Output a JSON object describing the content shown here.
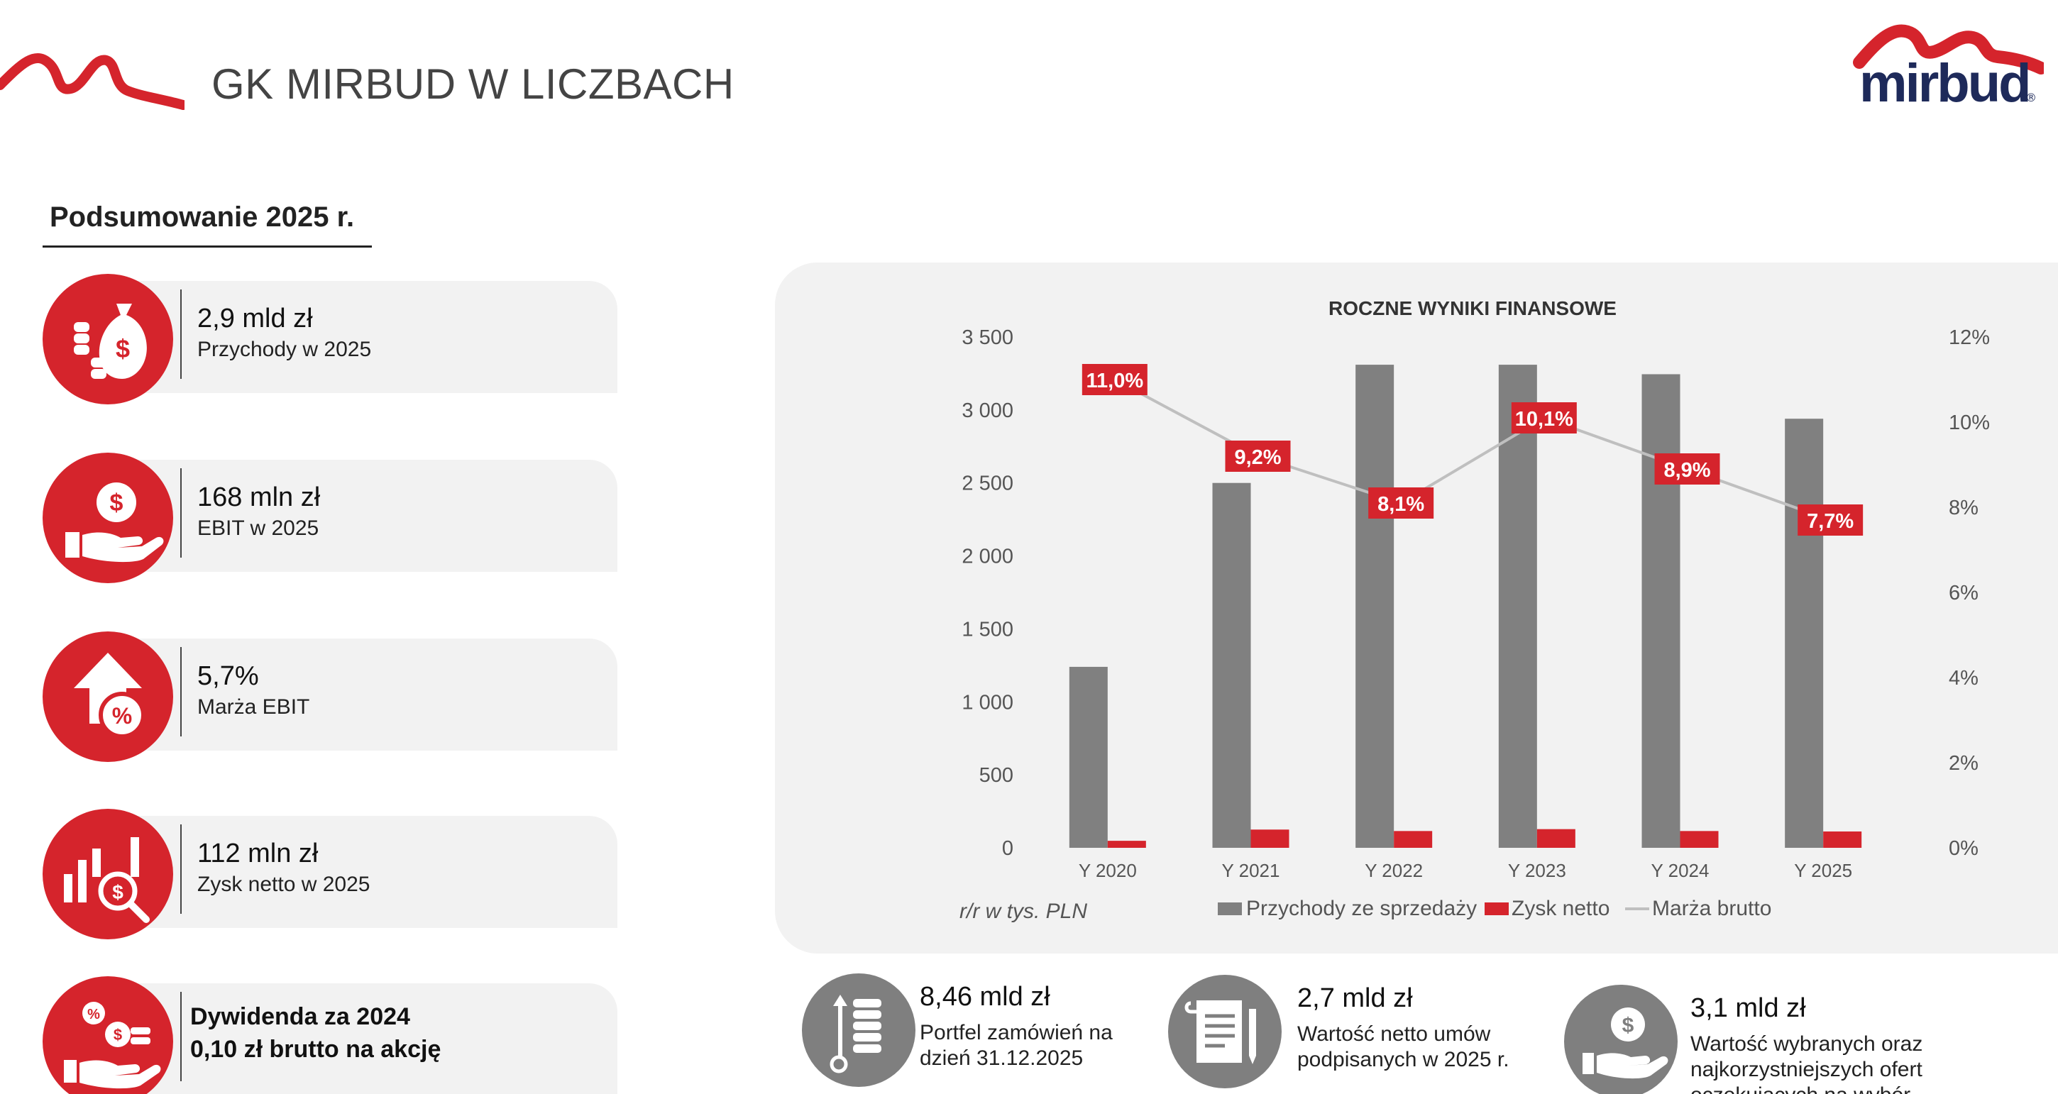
{
  "header": {
    "title": "GK MIRBUD W LICZBACH",
    "brand": "mirbud",
    "brand_mark": "®"
  },
  "summary": {
    "title": "Podsumowanie 2025 r.",
    "kpis": [
      {
        "value": "2,9 mld zł",
        "label": "Przychody w 2025",
        "icon": "money-bag-coins-icon"
      },
      {
        "value": "168 mln zł",
        "label": "EBIT w 2025",
        "icon": "hand-dollar-coin-icon"
      },
      {
        "value": "5,7%",
        "label": "Marża EBIT",
        "icon": "house-arrow-percent-icon"
      },
      {
        "value": "112 mln zł",
        "label": "Zysk netto w 2025",
        "icon": "bar-chart-magnifier-icon"
      }
    ],
    "dividend": {
      "line1": "Dywidenda za 2024",
      "line2": "0,10 zł brutto na akcję",
      "icon": "hand-coins-percent-icon"
    }
  },
  "bottom_kpis": [
    {
      "value": "8,46 mld zł",
      "label": "Portfel zamówień na dzień 31.12.2025",
      "icon": "coin-stack-arrows-icon"
    },
    {
      "value": "2,7 mld zł",
      "label": "Wartość netto umów podpisanych w 2025 r.",
      "icon": "contract-pen-icon"
    },
    {
      "value": "3,1 mld zł",
      "label": "Wartość wybranych oraz najkorzystniejszych ofert oczekujących na wybór",
      "icon": "hand-dollar-coin-icon"
    }
  ],
  "colors": {
    "accent": "#d5242c",
    "bar_revenue": "#808080",
    "bar_profit": "#d5242c",
    "line_margin": "#bfbfbf",
    "panel": "#f2f2f2"
  },
  "chart_data": {
    "type": "bar",
    "title": "ROCZNE WYNIKI FINANSOWE",
    "note": "r/r w tys. PLN",
    "categories": [
      "Y 2020",
      "Y 2021",
      "Y 2022",
      "Y 2023",
      "Y 2024",
      "Y 2025"
    ],
    "series": [
      {
        "name": "Przychody ze sprzedaży",
        "type": "bar",
        "axis": "left",
        "values": [
          1240,
          2500,
          3310,
          3310,
          3245,
          2940
        ]
      },
      {
        "name": "Zysk netto",
        "type": "bar",
        "axis": "left",
        "values": [
          48,
          125,
          115,
          128,
          115,
          112
        ]
      },
      {
        "name": "Marża brutto",
        "type": "line",
        "axis": "right",
        "values": [
          11.0,
          9.2,
          8.1,
          10.1,
          8.9,
          7.7
        ],
        "labels": [
          "11,0%",
          "9,2%",
          "8,1%",
          "10,1%",
          "8,9%",
          "7,7%"
        ]
      }
    ],
    "y_left": {
      "min": 0,
      "max": 3500,
      "ticks": [
        0,
        500,
        1000,
        1500,
        2000,
        2500,
        3000,
        3500
      ],
      "tick_labels": [
        "0",
        "500",
        "1 000",
        "1 500",
        "2 000",
        "2 500",
        "3 000",
        "3 500"
      ]
    },
    "y_right": {
      "min": 0,
      "max": 12,
      "ticks": [
        0,
        2,
        4,
        6,
        8,
        10,
        12
      ],
      "tick_labels": [
        "0%",
        "2%",
        "4%",
        "6%",
        "8%",
        "10%",
        "12%"
      ]
    },
    "grid": false,
    "legend": "bottom"
  }
}
